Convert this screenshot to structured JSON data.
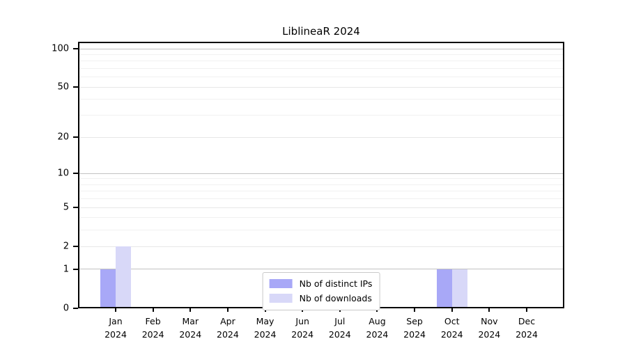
{
  "chart_data": {
    "type": "bar",
    "title": "LiblineaR 2024",
    "categories": [
      "Jan",
      "Feb",
      "Mar",
      "Apr",
      "May",
      "Jun",
      "Jul",
      "Aug",
      "Sep",
      "Oct",
      "Nov",
      "Dec"
    ],
    "category_year": "2024",
    "series": [
      {
        "name": "Nb of distinct IPs",
        "color": "#a8a8f7",
        "values": [
          1,
          0,
          0,
          0,
          0,
          0,
          0,
          0,
          0,
          1,
          0,
          0
        ]
      },
      {
        "name": "Nb of downloads",
        "color": "#d8d8f8",
        "values": [
          2,
          0,
          0,
          0,
          0,
          0,
          0,
          0,
          0,
          1,
          0,
          0
        ]
      }
    ],
    "yscale": "log1p",
    "ylim": [
      0,
      113.5
    ],
    "yticks": [
      0,
      1,
      2,
      5,
      10,
      20,
      50,
      100
    ],
    "minor_gridlines": [
      3,
      4,
      6,
      7,
      8,
      9,
      30,
      40,
      60,
      70,
      80,
      90
    ],
    "grid": true,
    "legend_position": "lower center",
    "colors": {
      "grid_decade": "#c2c2c2",
      "grid_labeled": "#e7e7e7",
      "grid_minor": "#f1f1f1",
      "axis": "#000000",
      "text": "#000000",
      "legend_border": "#c9c9c9"
    }
  }
}
